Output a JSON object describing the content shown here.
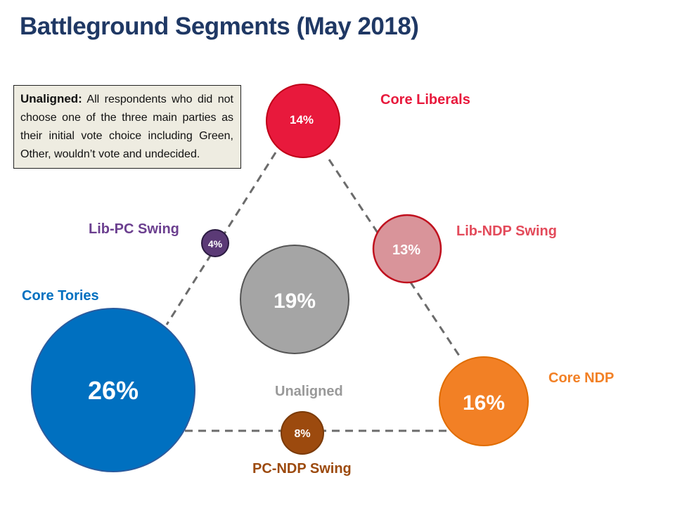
{
  "title": "Battleground Segments (May 2018)",
  "note": {
    "heading": "Unaligned:",
    "text": "All respondents who did not choose one of the three main parties as their initial vote choice including Green, Other, wouldn’t vote and undecided."
  },
  "segments": {
    "core_liberals": {
      "label": "Core Liberals",
      "value": "14%",
      "color": "#e8193c"
    },
    "lib_ndp_swing": {
      "label": "Lib-NDP Swing",
      "value": "13%",
      "color": "#d9949a"
    },
    "core_ndp": {
      "label": "Core NDP",
      "value": "16%",
      "color": "#f28025"
    },
    "pc_ndp_swing": {
      "label": "PC-NDP Swing",
      "value": "8%",
      "color": "#9c4a0e"
    },
    "core_tories": {
      "label": "Core Tories",
      "value": "26%",
      "color": "#0070c0"
    },
    "lib_pc_swing": {
      "label": "Lib-PC Swing",
      "value": "4%",
      "color": "#5b3a76"
    },
    "unaligned": {
      "label": "Unaligned",
      "value": "19%",
      "color": "#a5a5a5"
    }
  },
  "label_colors": {
    "core_liberals": "#e8193c",
    "lib_ndp_swing": "#e34a5a",
    "core_ndp": "#f28025",
    "pc_ndp_swing": "#9c4a0e",
    "core_tories": "#0070c0",
    "lib_pc_swing": "#6b3f8f",
    "unaligned": "#999999"
  }
}
